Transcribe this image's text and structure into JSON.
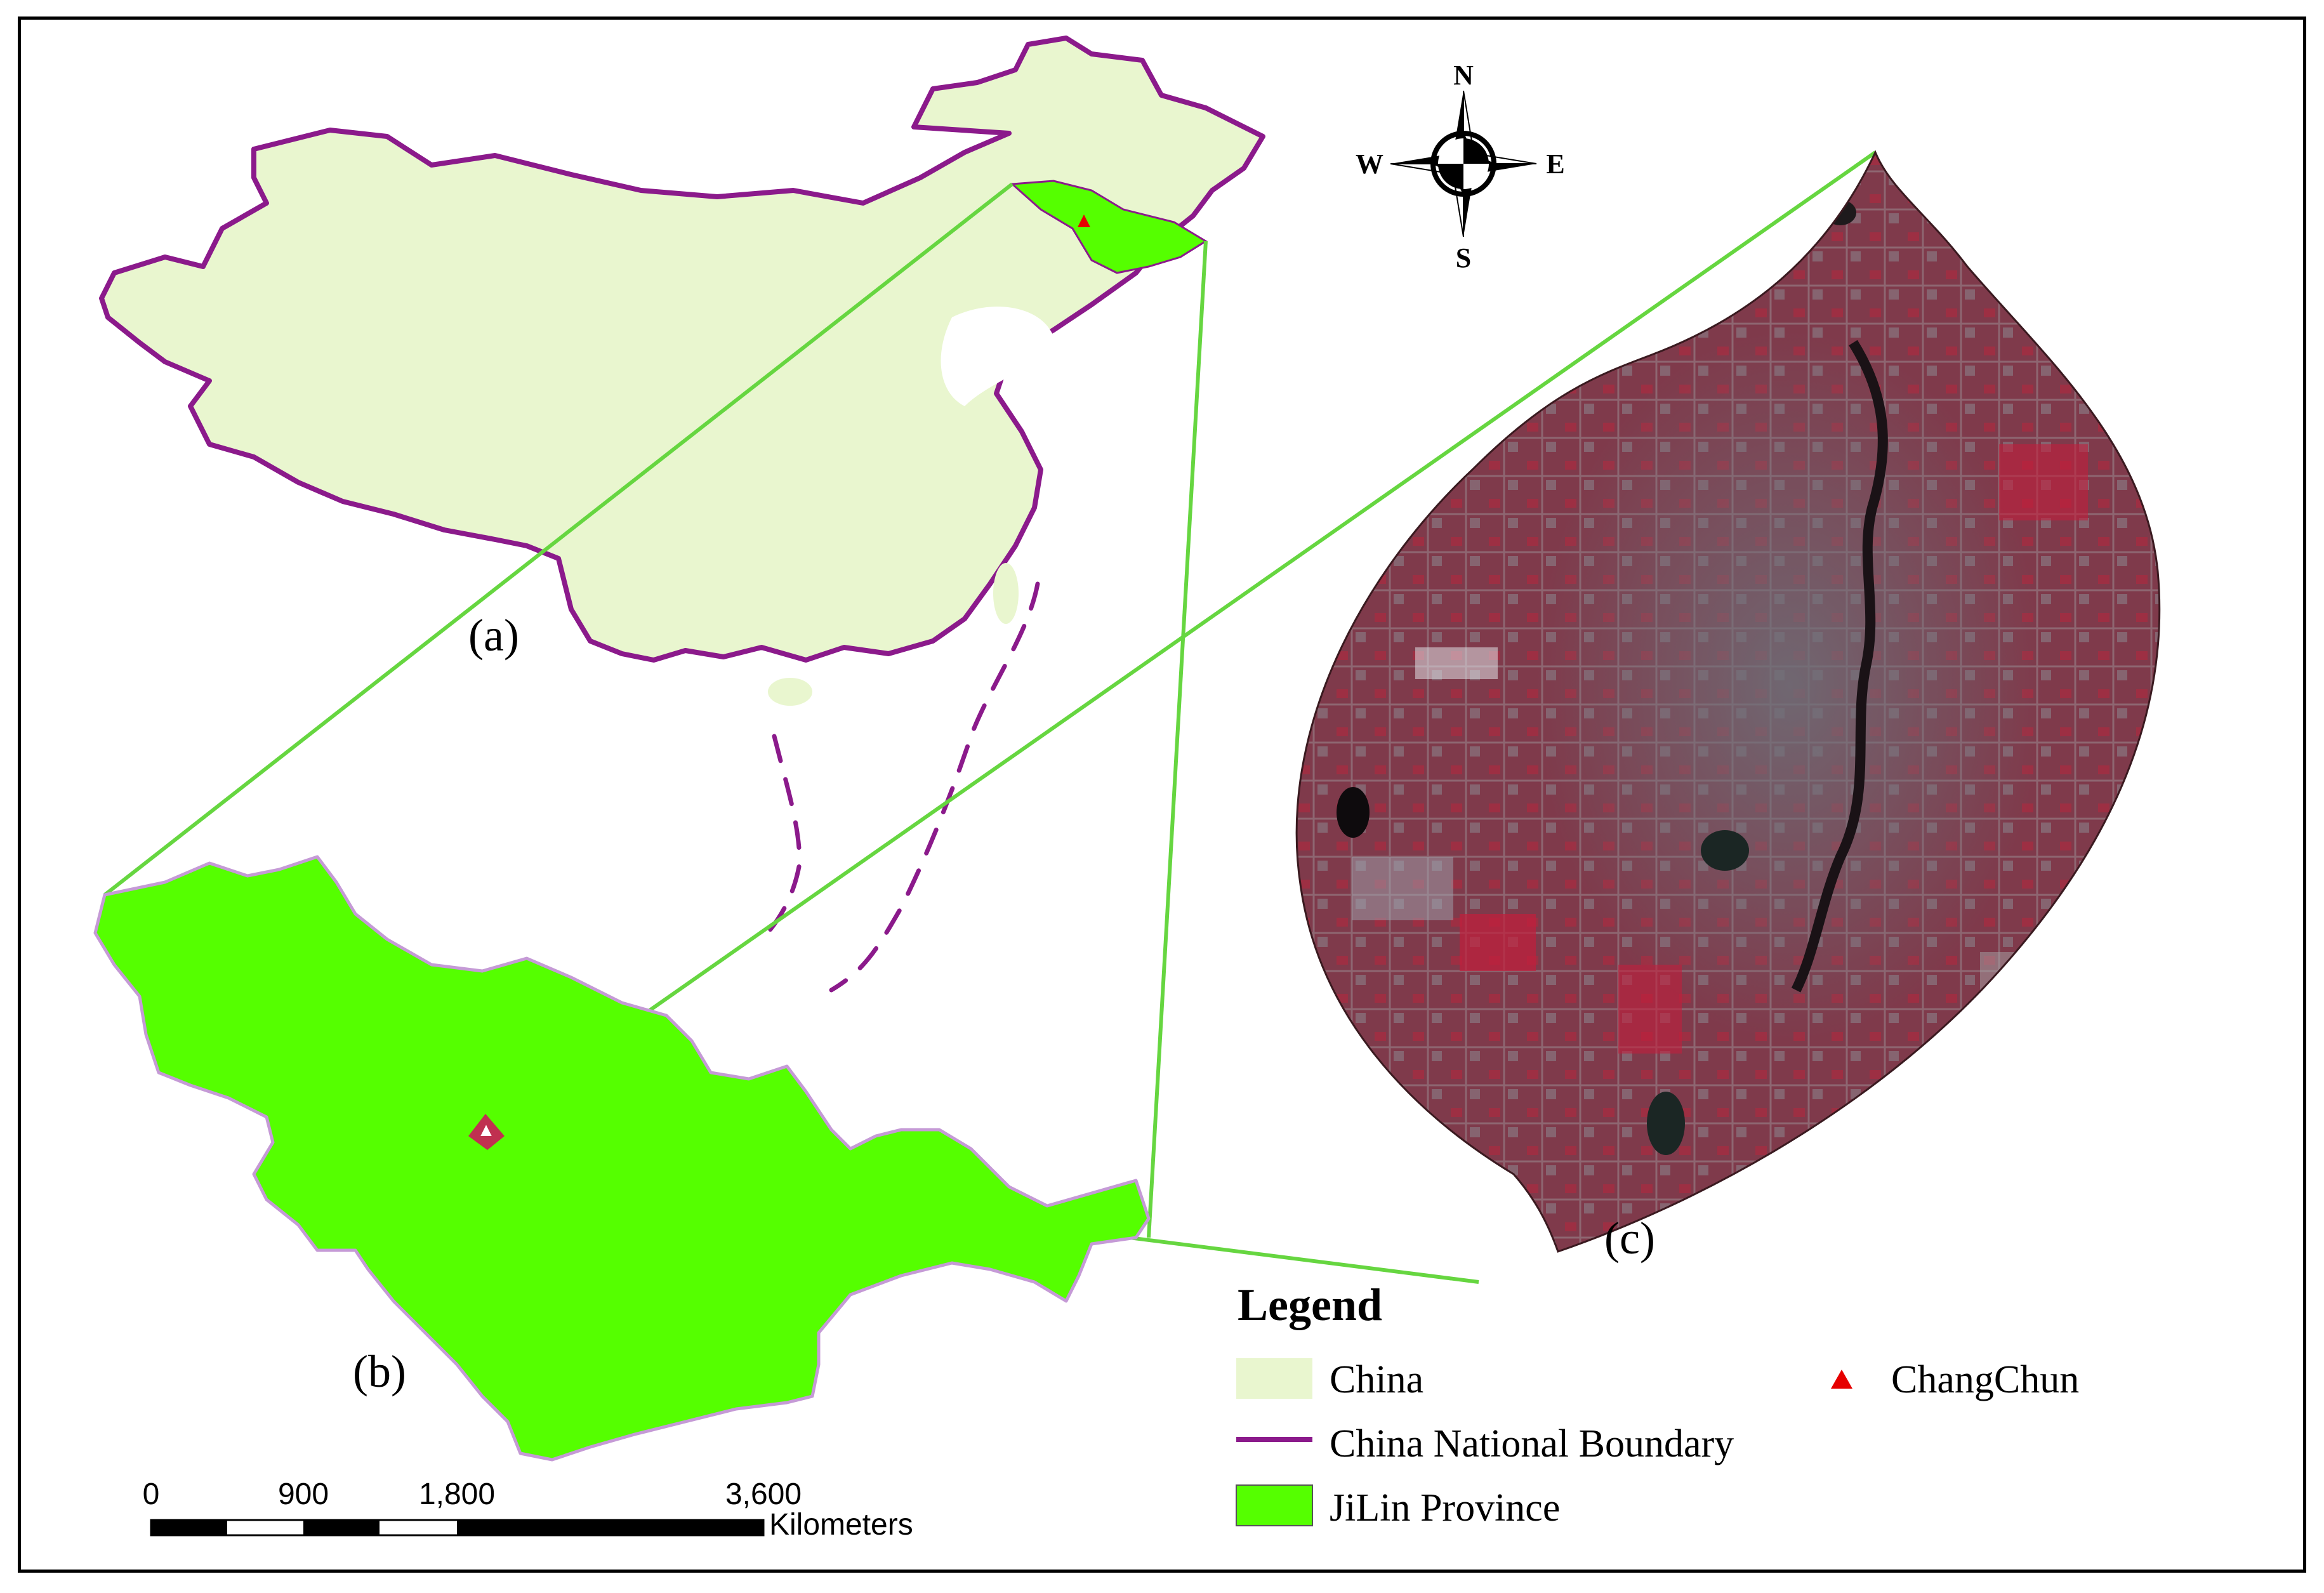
{
  "panels": {
    "a_label": "(a)",
    "b_label": "(b)",
    "c_label": "(c)"
  },
  "north_arrow": {
    "n": "N",
    "s": "S",
    "e": "E",
    "w": "W"
  },
  "legend": {
    "title": "Legend",
    "items": [
      {
        "label": "China",
        "symbol": "fill",
        "color": "#e9f6cf"
      },
      {
        "label": "China National Boundary",
        "symbol": "line",
        "color": "#8b1a8b"
      },
      {
        "label": "JiLin Province",
        "symbol": "fill",
        "color": "#55ff00"
      },
      {
        "label": "ChangChun",
        "symbol": "triangle",
        "color": "#e60000"
      }
    ]
  },
  "scale_bar": {
    "ticks": [
      "0",
      "900",
      "1,800",
      "3,600"
    ],
    "unit": "Kilometers"
  },
  "colors": {
    "china_fill": "#e9f6cf",
    "boundary": "#8b1a8b",
    "jilin_fill": "#55ff00",
    "connector": "#66d640",
    "changchun_marker": "#e60000",
    "satellite_base": "#8a3a4a"
  }
}
